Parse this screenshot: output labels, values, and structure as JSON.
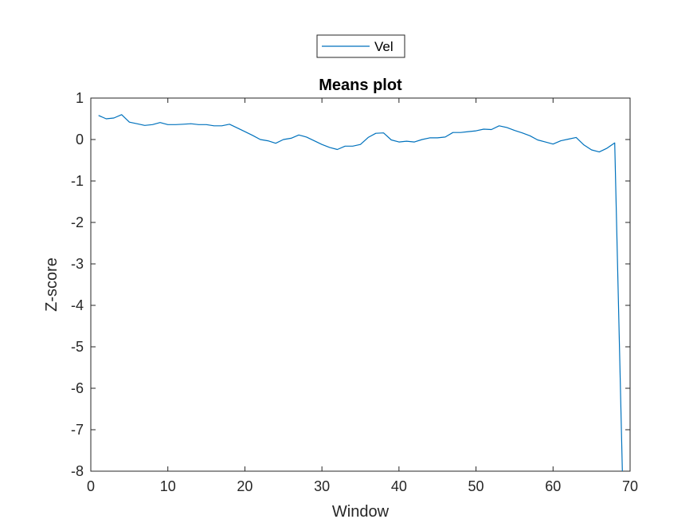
{
  "chart_data": {
    "type": "line",
    "title": "Means plot",
    "xlabel": "Window",
    "ylabel": "Z-score",
    "xlim": [
      0,
      70
    ],
    "ylim": [
      -8,
      1
    ],
    "xticks": [
      "0",
      "10",
      "20",
      "30",
      "40",
      "50",
      "60",
      "70"
    ],
    "yticks": [
      "1",
      "0",
      "-1",
      "-2",
      "-3",
      "-4",
      "-5",
      "-6",
      "-7",
      "-8"
    ],
    "grid": false,
    "legend_placement": "top-center-outside",
    "series": [
      {
        "name": "Vel",
        "color": "#0072bd",
        "x": [
          1,
          2,
          3,
          4,
          5,
          6,
          7,
          8,
          9,
          10,
          11,
          12,
          13,
          14,
          15,
          16,
          17,
          18,
          19,
          20,
          21,
          22,
          23,
          24,
          25,
          26,
          27,
          28,
          29,
          30,
          31,
          32,
          33,
          34,
          35,
          36,
          37,
          38,
          39,
          40,
          41,
          42,
          43,
          44,
          45,
          46,
          47,
          48,
          49,
          50,
          51,
          52,
          53,
          54,
          55,
          56,
          57,
          58,
          59,
          60,
          61,
          62,
          63,
          64,
          65,
          66,
          67,
          68,
          69
        ],
        "values": [
          0.58,
          0.5,
          0.52,
          0.6,
          0.42,
          0.38,
          0.34,
          0.36,
          0.41,
          0.36,
          0.36,
          0.37,
          0.38,
          0.36,
          0.36,
          0.33,
          0.33,
          0.37,
          0.28,
          0.19,
          0.1,
          0.0,
          -0.03,
          -0.09,
          0.0,
          0.03,
          0.11,
          0.06,
          -0.03,
          -0.12,
          -0.19,
          -0.24,
          -0.16,
          -0.16,
          -0.12,
          0.05,
          0.15,
          0.16,
          -0.01,
          -0.06,
          -0.04,
          -0.06,
          0.0,
          0.04,
          0.04,
          0.06,
          0.17,
          0.17,
          0.19,
          0.21,
          0.25,
          0.24,
          0.33,
          0.29,
          0.22,
          0.16,
          0.09,
          -0.01,
          -0.06,
          -0.11,
          -0.03,
          0.01,
          0.05,
          -0.13,
          -0.25,
          -0.3,
          -0.21,
          -0.08,
          -8.0
        ]
      }
    ]
  }
}
